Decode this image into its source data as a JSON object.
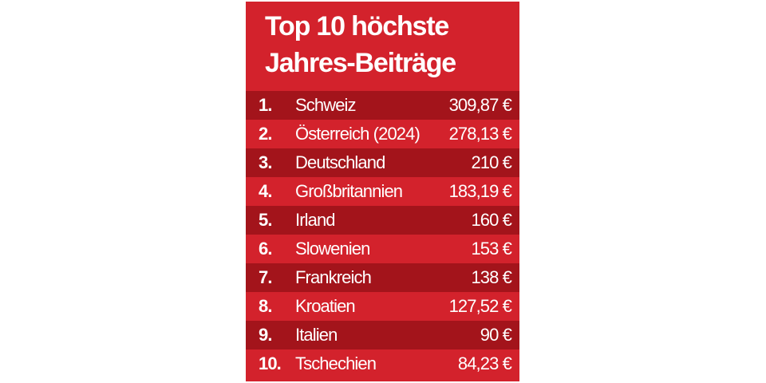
{
  "header": {
    "title_lines": [
      "Top 10 höchste",
      "Jahres-Beiträge"
    ]
  },
  "table": {
    "rows": [
      [
        "1.",
        "Schweiz",
        "309,87 €"
      ],
      [
        "2.",
        "Österreich (2024)",
        "278,13 €"
      ],
      [
        "3.",
        "Deutschland",
        "210 €"
      ],
      [
        "4.",
        "Großbritannien",
        "183,19 €"
      ],
      [
        "5.",
        "Irland",
        "160 €"
      ],
      [
        "6.",
        "Slowenien",
        "153 €"
      ],
      [
        "7.",
        "Frankreich",
        "138 €"
      ],
      [
        "8.",
        "Kroatien",
        "127,52 €"
      ],
      [
        "9.",
        "Italien",
        "90 €"
      ],
      [
        "10.",
        "Tschechien",
        "84,23 €"
      ]
    ]
  }
}
